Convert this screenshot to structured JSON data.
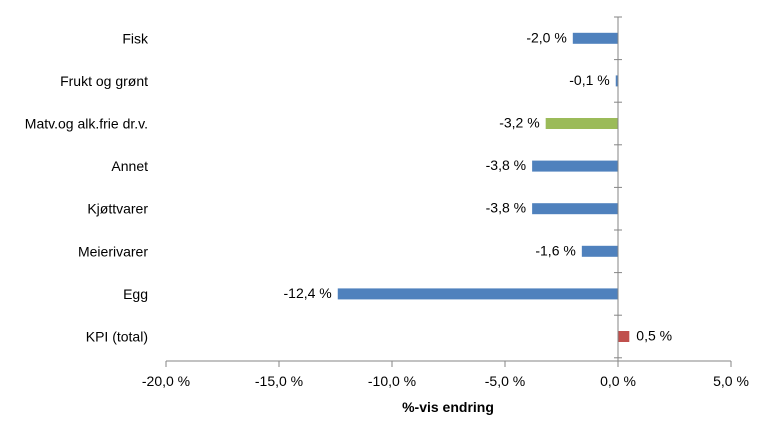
{
  "chart_data": {
    "type": "bar",
    "orientation": "horizontal",
    "title": "",
    "xlabel": "%-vis endring",
    "ylabel": "",
    "xlim": [
      -20,
      5
    ],
    "x_ticks": [
      -20,
      -15,
      -10,
      -5,
      0,
      5
    ],
    "x_tick_labels": [
      "-20,0 %",
      "-15,0 %",
      "-10,0 %",
      "-5,0 %",
      "0,0 %",
      "5,0 %"
    ],
    "grid": false,
    "legend": "none",
    "categories": [
      "Fisk",
      "Frukt og grønt",
      "Matv.og alk.frie dr.v.",
      "Annet",
      "Kjøttvarer",
      "Meierivarer",
      "Egg",
      "KPI (total)"
    ],
    "values": [
      -2.0,
      -0.1,
      -3.2,
      -3.8,
      -3.8,
      -1.6,
      -12.4,
      0.5
    ],
    "value_labels": [
      "-2,0 %",
      "-0,1 %",
      "-3,2 %",
      "-3,8 %",
      "-3,8 %",
      "-1,6 %",
      "-12,4 %",
      "0,5 %"
    ],
    "bar_colors": [
      "#4F81BD",
      "#4F81BD",
      "#9BBB59",
      "#4F81BD",
      "#4F81BD",
      "#4F81BD",
      "#4F81BD",
      "#C0504D"
    ],
    "axis_color": "#868686"
  }
}
